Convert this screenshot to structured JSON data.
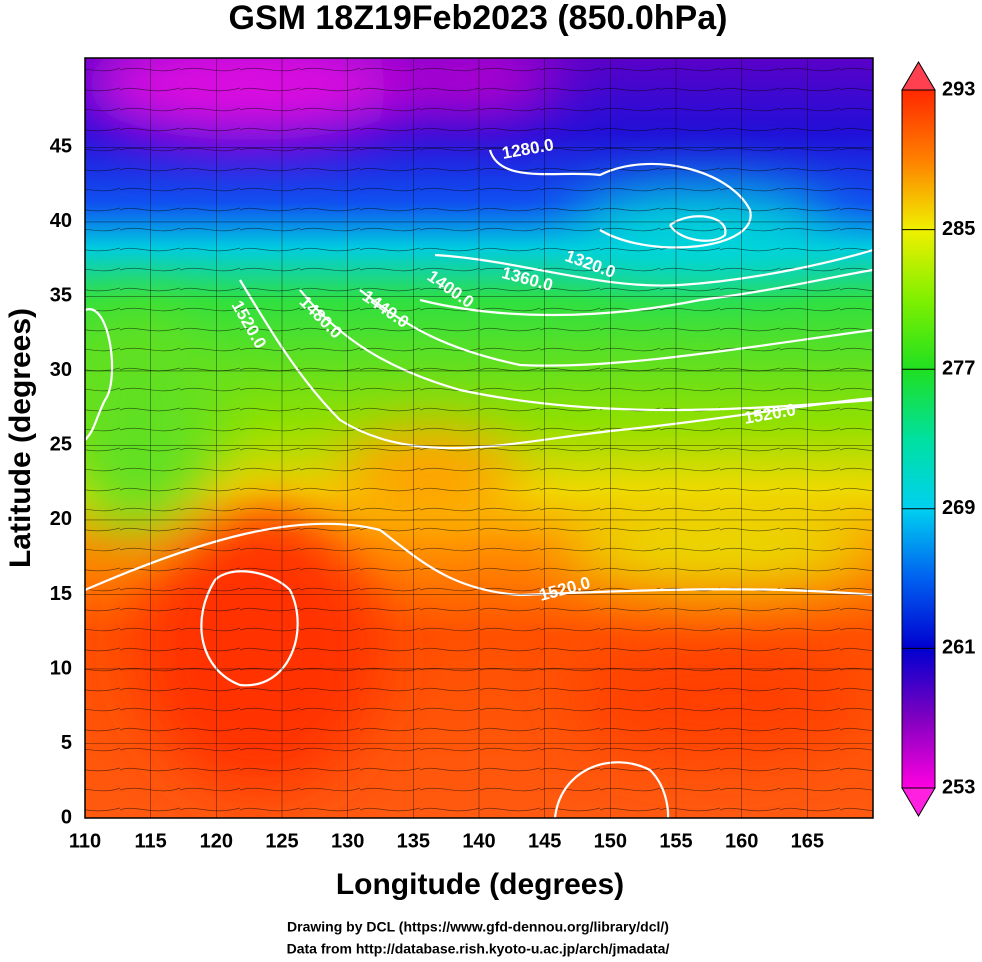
{
  "title": "GSM 18Z19Feb2023 (850.0hPa)",
  "map": {
    "xlabel": "Longitude (degrees)",
    "ylabel": "Latitude  (degrees)",
    "xlim": [
      110,
      170
    ],
    "ylim": [
      0,
      51
    ],
    "xticks": [
      110,
      115,
      120,
      125,
      130,
      135,
      140,
      145,
      150,
      155,
      160,
      165
    ],
    "yticks": [
      0,
      5,
      10,
      15,
      20,
      25,
      30,
      35,
      40,
      45
    ],
    "grid": true
  },
  "colorbar": {
    "range": [
      253,
      293
    ],
    "ticks": [
      293,
      285,
      277,
      269,
      261,
      253
    ]
  },
  "contour_labels": [
    "1280.0",
    "1320.0",
    "1360.0",
    "1400.0",
    "1440.0",
    "1480.0",
    "1520.0",
    "1520.0",
    "1520.0"
  ],
  "footer": [
    "Drawing by DCL (https://www.gfd-dennou.org/library/dcl/)",
    "Data from http://database.rish.kyoto-u.ac.jp/arch/jmadata/"
  ]
}
